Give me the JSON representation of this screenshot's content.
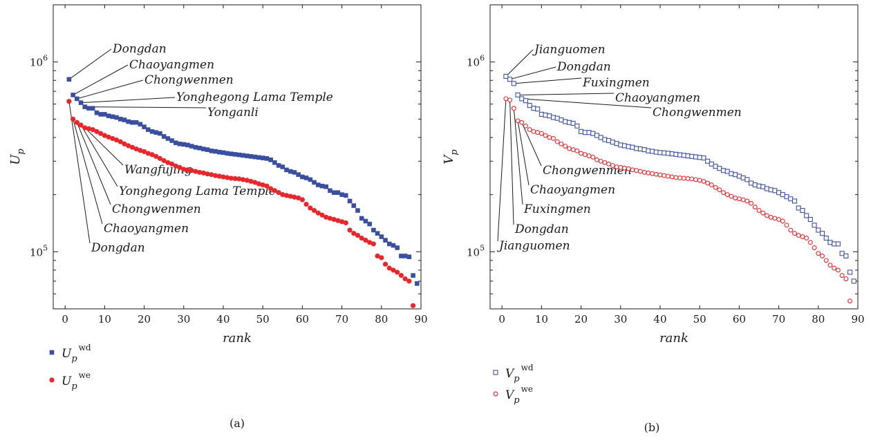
{
  "chart_data": [
    {
      "type": "scatter",
      "panel_label": "(a)",
      "xlabel": "rank",
      "ylabel_base": "U",
      "ylabel_sub": "p",
      "xlim": [
        -3,
        90
      ],
      "ylim": [
        50000,
        2000000
      ],
      "yscale": "log",
      "xticks": [
        0,
        10,
        20,
        30,
        40,
        50,
        60,
        70,
        80,
        90
      ],
      "yticks": [
        {
          "value": 100000,
          "base": "10",
          "exp": "5"
        },
        {
          "value": 1000000,
          "base": "10",
          "exp": "6"
        }
      ],
      "series": [
        {
          "name": "wd",
          "legend_base": "U",
          "legend_sub": "p",
          "legend_sup": "wd",
          "marker": "square-filled",
          "color": "#3a4fa0",
          "x": [
            1,
            2,
            3,
            4,
            5,
            6,
            7,
            8,
            9,
            10,
            11,
            12,
            13,
            14,
            15,
            16,
            17,
            18,
            19,
            20,
            21,
            22,
            23,
            24,
            25,
            26,
            27,
            28,
            29,
            30,
            31,
            32,
            33,
            34,
            35,
            36,
            37,
            38,
            39,
            40,
            41,
            42,
            43,
            44,
            45,
            46,
            47,
            48,
            49,
            50,
            51,
            52,
            53,
            54,
            55,
            56,
            57,
            58,
            59,
            60,
            61,
            62,
            63,
            64,
            65,
            66,
            67,
            68,
            69,
            70,
            71,
            72,
            73,
            74,
            75,
            76,
            77,
            78,
            79,
            80,
            81,
            82,
            83,
            84,
            85,
            86,
            87,
            88,
            89
          ],
          "y": [
            810000,
            670000,
            640000,
            610000,
            580000,
            570000,
            570000,
            540000,
            530000,
            530000,
            520000,
            515000,
            510000,
            500000,
            495000,
            485000,
            480000,
            480000,
            470000,
            455000,
            440000,
            430000,
            425000,
            420000,
            405000,
            395000,
            385000,
            375000,
            370000,
            368000,
            365000,
            360000,
            355000,
            352000,
            348000,
            345000,
            340000,
            338000,
            335000,
            333000,
            330000,
            328000,
            326000,
            324000,
            322000,
            320000,
            318000,
            316000,
            314000,
            312000,
            310000,
            305000,
            295000,
            285000,
            280000,
            270000,
            265000,
            262000,
            255000,
            248000,
            245000,
            240000,
            232000,
            225000,
            222000,
            220000,
            210000,
            205000,
            205000,
            200000,
            198000,
            185000,
            175000,
            165000,
            150000,
            145000,
            140000,
            130000,
            125000,
            120000,
            115000,
            110000,
            108000,
            105000,
            95000,
            95000,
            94000,
            75000,
            68000
          ]
        },
        {
          "name": "we",
          "legend_base": "U",
          "legend_sub": "p",
          "legend_sup": "we",
          "marker": "circle-filled",
          "color": "#e8262b",
          "x": [
            1,
            2,
            3,
            4,
            5,
            6,
            7,
            8,
            9,
            10,
            11,
            12,
            13,
            14,
            15,
            16,
            17,
            18,
            19,
            20,
            21,
            22,
            23,
            24,
            25,
            26,
            27,
            28,
            29,
            30,
            31,
            32,
            33,
            34,
            35,
            36,
            37,
            38,
            39,
            40,
            41,
            42,
            43,
            44,
            45,
            46,
            47,
            48,
            49,
            50,
            51,
            52,
            53,
            54,
            55,
            56,
            57,
            58,
            59,
            60,
            61,
            62,
            63,
            64,
            65,
            66,
            67,
            68,
            69,
            70,
            71,
            72,
            73,
            74,
            75,
            76,
            77,
            78,
            79,
            80,
            81,
            82,
            83,
            84,
            85,
            86,
            87,
            88
          ],
          "y": [
            620000,
            500000,
            480000,
            465000,
            450000,
            445000,
            440000,
            430000,
            420000,
            410000,
            402000,
            395000,
            388000,
            380000,
            370000,
            362000,
            355000,
            348000,
            342000,
            337000,
            330000,
            325000,
            318000,
            310000,
            302000,
            295000,
            290000,
            283000,
            278000,
            272000,
            270000,
            268000,
            265000,
            262000,
            260000,
            257000,
            255000,
            252000,
            250000,
            248000,
            246000,
            244000,
            243000,
            242000,
            240000,
            238000,
            235000,
            232000,
            228000,
            225000,
            222000,
            215000,
            210000,
            205000,
            200000,
            198000,
            196000,
            194000,
            192000,
            188000,
            178000,
            170000,
            165000,
            160000,
            156000,
            152000,
            150000,
            148000,
            146000,
            144000,
            142000,
            130000,
            125000,
            122000,
            118000,
            115000,
            112000,
            110000,
            95000,
            93000,
            86000,
            82000,
            80000,
            78000,
            75000,
            72000,
            70000,
            52000
          ]
        }
      ],
      "annotations": [
        {
          "text": "Dongdan",
          "series": "wd",
          "rank": 1
        },
        {
          "text": "Chaoyangmen",
          "series": "wd",
          "rank": 2
        },
        {
          "text": "Chongwenmen",
          "series": "wd",
          "rank": 3
        },
        {
          "text": "Yonghegong Lama Temple",
          "series": "wd",
          "rank": 4
        },
        {
          "text": "Yonganli",
          "series": "wd",
          "rank": 5
        },
        {
          "text": "Wangfujing",
          "series": "we",
          "rank": 5
        },
        {
          "text": "Yonghegong Lama Temple",
          "series": "we",
          "rank": 4
        },
        {
          "text": "Chongwenmen",
          "series": "we",
          "rank": 3
        },
        {
          "text": "Chaoyangmen",
          "series": "we",
          "rank": 2
        },
        {
          "text": "Dongdan",
          "series": "we",
          "rank": 1
        }
      ]
    },
    {
      "type": "scatter",
      "panel_label": "(b)",
      "xlabel": "rank",
      "ylabel_base": "V",
      "ylabel_sub": "p",
      "xlim": [
        -3,
        90
      ],
      "ylim": [
        50000,
        2000000
      ],
      "yscale": "log",
      "xticks": [
        0,
        10,
        20,
        30,
        40,
        50,
        60,
        70,
        80,
        90
      ],
      "yticks": [
        {
          "value": 100000,
          "base": "10",
          "exp": "5"
        },
        {
          "value": 1000000,
          "base": "10",
          "exp": "6"
        }
      ],
      "series": [
        {
          "name": "wd",
          "legend_base": "V",
          "legend_sub": "p",
          "legend_sup": "wd",
          "marker": "square-open",
          "color": "#3a4fa0",
          "x": [
            1,
            2,
            3,
            4,
            5,
            6,
            7,
            8,
            9,
            10,
            11,
            12,
            13,
            14,
            15,
            16,
            17,
            18,
            19,
            20,
            21,
            22,
            23,
            24,
            25,
            26,
            27,
            28,
            29,
            30,
            31,
            32,
            33,
            34,
            35,
            36,
            37,
            38,
            39,
            40,
            41,
            42,
            43,
            44,
            45,
            46,
            47,
            48,
            49,
            50,
            51,
            52,
            53,
            54,
            55,
            56,
            57,
            58,
            59,
            60,
            61,
            62,
            63,
            64,
            65,
            66,
            67,
            68,
            69,
            70,
            71,
            72,
            73,
            74,
            75,
            76,
            77,
            78,
            79,
            80,
            81,
            82,
            83,
            84,
            85,
            86,
            87,
            88,
            89
          ],
          "y": [
            840000,
            810000,
            770000,
            670000,
            640000,
            625000,
            590000,
            570000,
            565000,
            530000,
            525000,
            520000,
            510000,
            505000,
            495000,
            485000,
            480000,
            475000,
            460000,
            430000,
            425000,
            425000,
            420000,
            410000,
            400000,
            390000,
            385000,
            378000,
            372000,
            365000,
            362000,
            358000,
            355000,
            350000,
            348000,
            345000,
            340000,
            338000,
            335000,
            333000,
            332000,
            330000,
            328000,
            326000,
            324000,
            322000,
            320000,
            318000,
            316000,
            314000,
            312000,
            300000,
            290000,
            282000,
            275000,
            268000,
            265000,
            258000,
            255000,
            250000,
            245000,
            240000,
            230000,
            225000,
            222000,
            220000,
            215000,
            212000,
            210000,
            205000,
            200000,
            195000,
            190000,
            185000,
            170000,
            165000,
            155000,
            148000,
            138000,
            130000,
            125000,
            118000,
            112000,
            110000,
            110000,
            98000,
            95000,
            78000,
            70000
          ]
        },
        {
          "name": "we",
          "legend_base": "V",
          "legend_sub": "p",
          "legend_sup": "we",
          "marker": "circle-open",
          "color": "#e8262b",
          "x": [
            1,
            2,
            3,
            4,
            5,
            6,
            7,
            8,
            9,
            10,
            11,
            12,
            13,
            14,
            15,
            16,
            17,
            18,
            19,
            20,
            21,
            22,
            23,
            24,
            25,
            26,
            27,
            28,
            29,
            30,
            31,
            32,
            33,
            34,
            35,
            36,
            37,
            38,
            39,
            40,
            41,
            42,
            43,
            44,
            45,
            46,
            47,
            48,
            49,
            50,
            51,
            52,
            53,
            54,
            55,
            56,
            57,
            58,
            59,
            60,
            61,
            62,
            63,
            64,
            65,
            66,
            67,
            68,
            69,
            70,
            71,
            72,
            73,
            74,
            75,
            76,
            77,
            78,
            79,
            80,
            81,
            82,
            83,
            84,
            85,
            86,
            87,
            88
          ],
          "y": [
            640000,
            630000,
            570000,
            490000,
            480000,
            460000,
            440000,
            430000,
            425000,
            420000,
            410000,
            400000,
            395000,
            380000,
            370000,
            360000,
            350000,
            345000,
            340000,
            330000,
            325000,
            320000,
            315000,
            305000,
            300000,
            295000,
            290000,
            285000,
            280000,
            278000,
            276000,
            274000,
            270000,
            268000,
            265000,
            262000,
            260000,
            258000,
            256000,
            254000,
            252000,
            250000,
            248000,
            246000,
            245000,
            244000,
            243000,
            242000,
            240000,
            238000,
            235000,
            230000,
            225000,
            218000,
            212000,
            205000,
            200000,
            196000,
            192000,
            190000,
            188000,
            185000,
            180000,
            172000,
            165000,
            160000,
            155000,
            152000,
            150000,
            148000,
            145000,
            138000,
            130000,
            125000,
            122000,
            120000,
            118000,
            112000,
            105000,
            98000,
            95000,
            90000,
            85000,
            82000,
            80000,
            75000,
            72000,
            55000
          ]
        }
      ],
      "annotations": [
        {
          "text": "Jianguomen",
          "series": "wd",
          "rank": 1
        },
        {
          "text": "Dongdan",
          "series": "wd",
          "rank": 2
        },
        {
          "text": "Fuxingmen",
          "series": "wd",
          "rank": 3
        },
        {
          "text": "Chaoyangmen",
          "series": "wd",
          "rank": 4
        },
        {
          "text": "Chongwenmen",
          "series": "wd",
          "rank": 5
        },
        {
          "text": "Chongwenmen",
          "series": "we",
          "rank": 5
        },
        {
          "text": "Chaoyangmen",
          "series": "we",
          "rank": 4
        },
        {
          "text": "Fuxingmen",
          "series": "we",
          "rank": 3
        },
        {
          "text": "Dongdan",
          "series": "we",
          "rank": 2
        },
        {
          "text": "Jianguomen",
          "series": "we",
          "rank": 1
        }
      ]
    }
  ]
}
